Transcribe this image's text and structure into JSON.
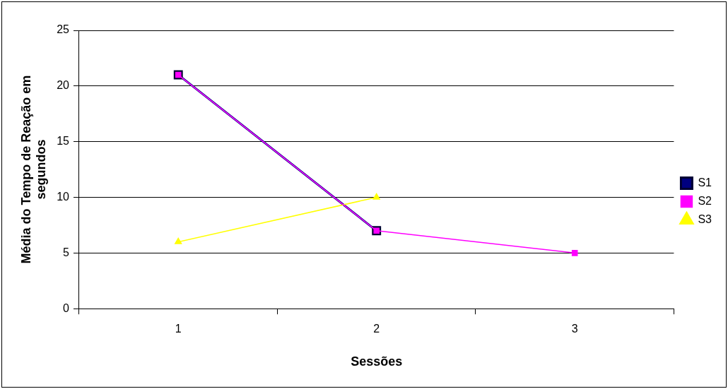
{
  "chart_data": {
    "type": "line",
    "xlabel": "Sessões",
    "ylabel": "Média do Tempo de Reação em segundos",
    "categories": [
      "1",
      "2",
      "3"
    ],
    "series": [
      {
        "name": "S1",
        "color": "#000080",
        "values": [
          21,
          7,
          null
        ],
        "marker": "square"
      },
      {
        "name": "S2",
        "color": "#ff00ff",
        "values": [
          21,
          7,
          5
        ],
        "marker": "square"
      },
      {
        "name": "S3",
        "color": "#ffff00",
        "values": [
          6,
          10,
          null
        ],
        "marker": "triangle"
      }
    ],
    "ylim": [
      0,
      25
    ],
    "yticks": [
      0,
      5,
      10,
      15,
      20,
      25
    ],
    "grid": "y",
    "legend": "right",
    "line_style": "solid"
  }
}
